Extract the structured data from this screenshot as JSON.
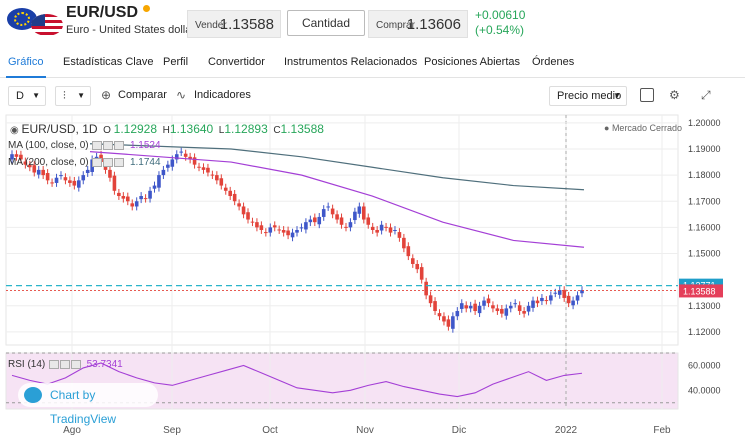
{
  "header": {
    "pair": "EUR/USD",
    "subtitle": "Euro - United States dollar",
    "sell_label": "Vender",
    "sell_price": "1.13588",
    "quantity_label": "Cantidad",
    "buy_label": "Comprar",
    "buy_price": "1.13606",
    "change_abs": "+0.00610",
    "change_pct": "(+0.54%)",
    "colors": {
      "up": "#27a65a",
      "down": "#e2433a",
      "accent": "#1f7bd8"
    }
  },
  "tabs": [
    {
      "label": "Gráfico",
      "active": true
    },
    {
      "label": "Estadísticas Clave"
    },
    {
      "label": "Perfil"
    },
    {
      "label": "Convertidor"
    },
    {
      "label": "Instrumentos Relacionados"
    },
    {
      "label": "Posiciones Abiertas"
    },
    {
      "label": "Órdenes"
    }
  ],
  "toolbar": {
    "interval": "D",
    "compare_label": "Comparar",
    "indicators_label": "Indicadores",
    "price_type": "Precio medio"
  },
  "chart": {
    "symbol_label": "EUR/USD, 1D",
    "ohlc": {
      "o_label": "O",
      "o": "1.12928",
      "h_label": "H",
      "h": "1.13640",
      "l_label": "L",
      "l": "1.12893",
      "c_label": "C",
      "c": "1.13588"
    },
    "market_status": "Mercado Cerrado",
    "ma100_label": "MA (100, close, 0)",
    "ma100_value": "1.1524",
    "ma200_label": "MA (200, close, 0)",
    "ma200_value": "1.1744",
    "rsi_label": "RSI (14)",
    "rsi_value": "53.7341",
    "watermark": "Chart by TradingView",
    "price_ticks": [
      "1.20000",
      "1.19000",
      "1.18000",
      "1.17000",
      "1.16000",
      "1.15000",
      "1.13000",
      "1.12000"
    ],
    "rsi_ticks": [
      "60.0000",
      "40.0000"
    ],
    "last_price_tag": "1.13588",
    "ask_tag": "1.13771",
    "month_labels": [
      "Ago",
      "Sep",
      "Oct",
      "Nov",
      "Dic",
      "2022",
      "Feb"
    ]
  },
  "chart_data": {
    "type": "candlestick",
    "title": "EUR/USD, 1D",
    "ylim": [
      1.115,
      1.203
    ],
    "x_labels": [
      "Ago",
      "Sep",
      "Oct",
      "Nov",
      "Dic",
      "2022",
      "Feb"
    ],
    "candles_close": [
      1.188,
      1.187,
      1.186,
      1.184,
      1.183,
      1.181,
      1.182,
      1.18,
      1.178,
      1.177,
      1.179,
      1.18,
      1.178,
      1.177,
      1.176,
      1.178,
      1.18,
      1.182,
      1.186,
      1.187,
      1.185,
      1.182,
      1.179,
      1.174,
      1.172,
      1.171,
      1.17,
      1.168,
      1.17,
      1.172,
      1.171,
      1.174,
      1.176,
      1.18,
      1.182,
      1.184,
      1.186,
      1.188,
      1.189,
      1.187,
      1.186,
      1.184,
      1.183,
      1.182,
      1.181,
      1.18,
      1.178,
      1.176,
      1.174,
      1.172,
      1.17,
      1.168,
      1.165,
      1.163,
      1.162,
      1.16,
      1.159,
      1.158,
      1.16,
      1.16,
      1.159,
      1.158,
      1.157,
      1.158,
      1.159,
      1.16,
      1.162,
      1.163,
      1.162,
      1.164,
      1.167,
      1.168,
      1.165,
      1.163,
      1.161,
      1.16,
      1.162,
      1.166,
      1.168,
      1.163,
      1.161,
      1.159,
      1.158,
      1.161,
      1.16,
      1.158,
      1.159,
      1.156,
      1.152,
      1.149,
      1.146,
      1.144,
      1.14,
      1.134,
      1.131,
      1.128,
      1.126,
      1.124,
      1.122,
      1.126,
      1.128,
      1.131,
      1.129,
      1.13,
      1.128,
      1.13,
      1.132,
      1.131,
      1.129,
      1.128,
      1.127,
      1.129,
      1.13,
      1.131,
      1.128,
      1.127,
      1.13,
      1.132,
      1.131,
      1.133,
      1.132,
      1.134,
      1.135,
      1.136,
      1.133,
      1.131,
      1.132,
      1.134,
      1.136
    ],
    "ma100": [
      1.189,
      1.187,
      1.185,
      1.18,
      1.172,
      1.162,
      1.155,
      1.1524
    ],
    "ma200": [
      1.192,
      1.191,
      1.19,
      1.187,
      1.183,
      1.179,
      1.176,
      1.1744
    ],
    "rsi": [
      52,
      48,
      45,
      50,
      58,
      62,
      55,
      50,
      46,
      44,
      48,
      52,
      56,
      60,
      54,
      48,
      42,
      40,
      38,
      40,
      44,
      47,
      43,
      40,
      37,
      35,
      38,
      45,
      50,
      55,
      48,
      52,
      53.7341
    ]
  }
}
